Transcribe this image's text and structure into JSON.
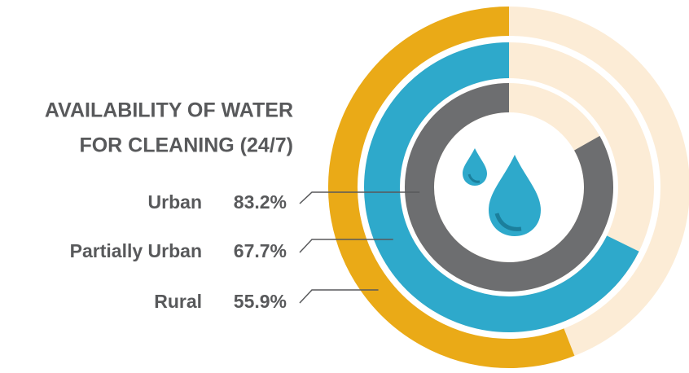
{
  "chart_data": {
    "type": "radial-bar",
    "title_lines": [
      "AVAILABILITY OF WATER",
      "FOR CLEANING (24/7)"
    ],
    "categories": [
      "Urban",
      "Partially Urban",
      "Rural"
    ],
    "values": [
      83.2,
      67.7,
      55.9
    ],
    "value_labels": [
      "83.2%",
      "67.7%",
      "55.9%"
    ],
    "colors": [
      "#6d6e70",
      "#2ea9cb",
      "#eaaa17"
    ],
    "track_color": "#fcecd6",
    "ylim": [
      0,
      100
    ],
    "direction": "counterclockwise"
  }
}
